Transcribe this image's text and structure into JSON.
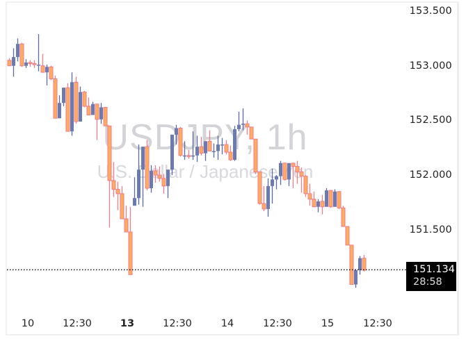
{
  "chart_data": {
    "type": "candlestick",
    "title": "USDJPY, 1h",
    "subtitle": "U.S. Dollar / Japanese Yen",
    "symbol": "USDJPY",
    "interval": "1h",
    "ylabel": "",
    "xlabel": "",
    "ylim": [
      150.75,
      153.6
    ],
    "y_ticks": [
      "153.500",
      "153.000",
      "152.500",
      "152.000",
      "151.500"
    ],
    "x_ticks": [
      {
        "label": "10",
        "bold": false
      },
      {
        "label": "12:30",
        "bold": false
      },
      {
        "label": "13",
        "bold": true
      },
      {
        "label": "12:30",
        "bold": false
      },
      {
        "label": "14",
        "bold": false
      },
      {
        "label": "12:30",
        "bold": false
      },
      {
        "label": "15",
        "bold": false
      },
      {
        "label": "12:30",
        "bold": false
      }
    ],
    "grid": false,
    "last_price": "151.134",
    "countdown": "28:58",
    "colors": {
      "up": "#6b7bb0",
      "down_fill": "#ffab60",
      "down_border": "#f07c8c",
      "up_wick": "#5a6aa5",
      "down_wick": "#f07c8c"
    },
    "candles_ohlc": [
      [
        153.05,
        153.07,
        153.0,
        153.0
      ],
      [
        153.0,
        153.16,
        152.9,
        153.08
      ],
      [
        153.08,
        153.25,
        153.04,
        153.2
      ],
      [
        153.2,
        153.21,
        152.99,
        153.0
      ],
      [
        153.0,
        153.06,
        152.98,
        153.03
      ],
      [
        153.03,
        153.05,
        152.99,
        153.02
      ],
      [
        153.02,
        153.05,
        152.98,
        153.01
      ],
      [
        153.01,
        153.29,
        152.95,
        153.01
      ],
      [
        153.0,
        153.11,
        152.94,
        152.94
      ],
      [
        152.94,
        153.01,
        152.82,
        152.99
      ],
      [
        152.99,
        153.0,
        152.87,
        152.88
      ],
      [
        152.88,
        152.91,
        152.52,
        152.52
      ],
      [
        152.52,
        152.73,
        152.55,
        152.66
      ],
      [
        152.66,
        152.79,
        152.63,
        152.8
      ],
      [
        152.8,
        152.84,
        152.4,
        152.4
      ],
      [
        152.4,
        152.94,
        152.36,
        152.85
      ],
      [
        152.85,
        152.9,
        152.47,
        152.49
      ],
      [
        152.49,
        152.81,
        152.49,
        152.76
      ],
      [
        152.76,
        152.77,
        152.62,
        152.63
      ],
      [
        152.63,
        152.71,
        152.55,
        152.55
      ],
      [
        152.55,
        152.67,
        152.58,
        152.65
      ],
      [
        152.65,
        152.65,
        152.32,
        152.51
      ],
      [
        152.51,
        152.66,
        152.47,
        152.62
      ],
      [
        152.62,
        152.62,
        152.45,
        152.45
      ],
      [
        152.45,
        152.45,
        151.52,
        151.95
      ],
      [
        151.95,
        152.12,
        151.8,
        151.87
      ],
      [
        151.87,
        151.94,
        151.68,
        151.83
      ],
      [
        151.83,
        151.9,
        151.6,
        151.6
      ],
      [
        151.6,
        151.72,
        151.48,
        151.48
      ],
      [
        151.48,
        151.71,
        151.09,
        151.09
      ],
      [
        151.72,
        151.98,
        151.73,
        151.79
      ],
      [
        151.79,
        152.28,
        151.73,
        152.05
      ],
      [
        152.05,
        152.26,
        151.71,
        152.26
      ],
      [
        152.26,
        152.32,
        151.86,
        151.88
      ],
      [
        151.88,
        152.09,
        151.84,
        152.04
      ],
      [
        152.04,
        152.09,
        151.93,
        152.0
      ],
      [
        152.0,
        152.08,
        151.94,
        151.97
      ],
      [
        151.97,
        152.01,
        151.83,
        151.9
      ],
      [
        151.9,
        152.02,
        151.79,
        152.05
      ],
      [
        152.05,
        152.36,
        152.0,
        152.37
      ],
      [
        152.37,
        152.46,
        152.28,
        152.43
      ],
      [
        152.43,
        152.44,
        152.17,
        152.18
      ],
      [
        152.18,
        152.31,
        152.14,
        152.18
      ],
      [
        152.18,
        152.23,
        152.15,
        152.17
      ],
      [
        152.17,
        152.4,
        152.14,
        152.18
      ],
      [
        152.18,
        152.36,
        152.12,
        152.26
      ],
      [
        152.26,
        152.35,
        152.18,
        152.2
      ],
      [
        152.2,
        152.28,
        152.13,
        152.31
      ],
      [
        152.31,
        152.41,
        152.22,
        152.22
      ],
      [
        152.22,
        152.29,
        152.16,
        152.22
      ],
      [
        152.22,
        152.36,
        152.14,
        152.28
      ],
      [
        152.28,
        152.34,
        152.19,
        152.28
      ],
      [
        152.28,
        152.32,
        152.19,
        152.21
      ],
      [
        152.21,
        152.27,
        152.13,
        152.14
      ],
      [
        152.14,
        152.45,
        152.13,
        152.42
      ],
      [
        152.42,
        152.58,
        152.4,
        152.46
      ],
      [
        152.46,
        152.61,
        152.41,
        152.47
      ],
      [
        152.47,
        152.5,
        152.37,
        152.44
      ],
      [
        152.44,
        152.43,
        152.33,
        152.33
      ],
      [
        152.33,
        152.31,
        152.01,
        152.03
      ],
      [
        152.03,
        152.03,
        151.73,
        151.74
      ],
      [
        151.74,
        151.9,
        151.67,
        151.69
      ],
      [
        151.69,
        151.97,
        151.62,
        151.9
      ],
      [
        151.9,
        152.06,
        151.74,
        151.96
      ],
      [
        151.96,
        152.0,
        151.87,
        151.99
      ],
      [
        151.99,
        152.13,
        151.91,
        152.11
      ],
      [
        152.11,
        152.1,
        151.95,
        151.96
      ],
      [
        151.96,
        152.06,
        151.9,
        152.11
      ],
      [
        152.11,
        152.11,
        151.88,
        152.08
      ],
      [
        152.08,
        152.13,
        151.92,
        152.03
      ],
      [
        152.03,
        152.07,
        151.84,
        151.99
      ],
      [
        151.99,
        152.0,
        151.8,
        151.83
      ],
      [
        151.83,
        151.92,
        151.72,
        151.78
      ],
      [
        151.78,
        151.85,
        151.71,
        151.71
      ],
      [
        151.71,
        151.78,
        151.66,
        151.76
      ],
      [
        151.76,
        151.82,
        151.64,
        151.71
      ],
      [
        151.71,
        151.88,
        151.71,
        151.86
      ],
      [
        151.86,
        151.86,
        151.7,
        151.71
      ],
      [
        151.71,
        151.87,
        151.71,
        151.85
      ],
      [
        151.85,
        151.85,
        151.69,
        151.7
      ],
      [
        151.7,
        151.72,
        151.53,
        151.53
      ],
      [
        151.53,
        151.53,
        151.37,
        151.36
      ],
      [
        151.36,
        151.36,
        151.0,
        151.0
      ],
      [
        151.0,
        151.14,
        150.97,
        151.13
      ],
      [
        151.13,
        151.26,
        151.09,
        151.24
      ],
      [
        151.24,
        151.27,
        151.12,
        151.13
      ]
    ]
  },
  "price_tag": {
    "price": "151.134",
    "countdown": "28:58"
  },
  "watermark": {
    "title": "USDJPY, 1h",
    "subtitle": "U.S. Dollar / Japanese Yen"
  }
}
